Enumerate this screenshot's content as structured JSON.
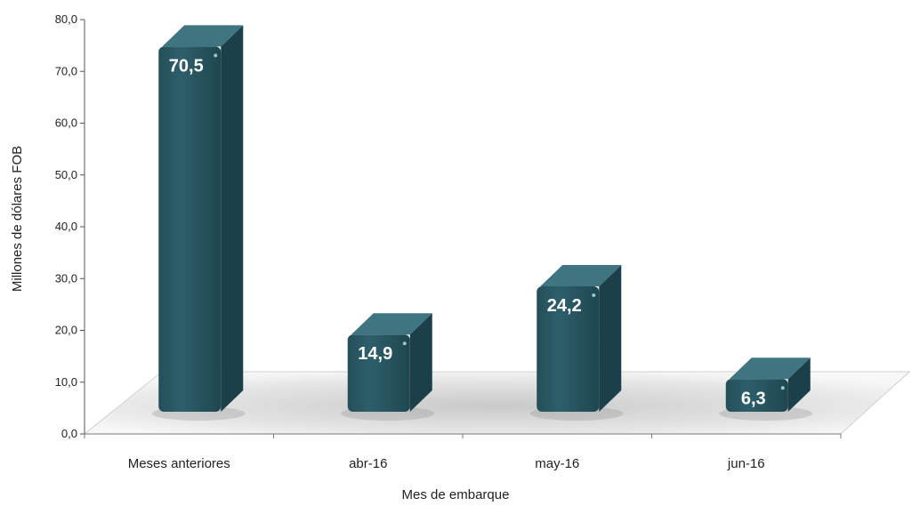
{
  "chart_data": {
    "type": "bar",
    "categories": [
      "Meses anteriores",
      "abr-16",
      "may-16",
      "jun-16"
    ],
    "values": [
      70.5,
      14.9,
      24.2,
      6.3
    ],
    "data_labels": [
      "70,5",
      "14,9",
      "24,2",
      "6,3"
    ],
    "title": "",
    "xlabel": "Mes de embarque",
    "ylabel": "Millones de dólares FOB",
    "ylim": [
      0,
      80
    ],
    "yticks": [
      "0,0",
      "10,0",
      "20,0",
      "30,0",
      "40,0",
      "50,0",
      "60,0",
      "70,0",
      "80,0"
    ],
    "grid": false,
    "legend": "none",
    "bar_color": "#2a5a66",
    "bar_top_color": "#3f7481",
    "floor_color": "#e2e2e2"
  }
}
